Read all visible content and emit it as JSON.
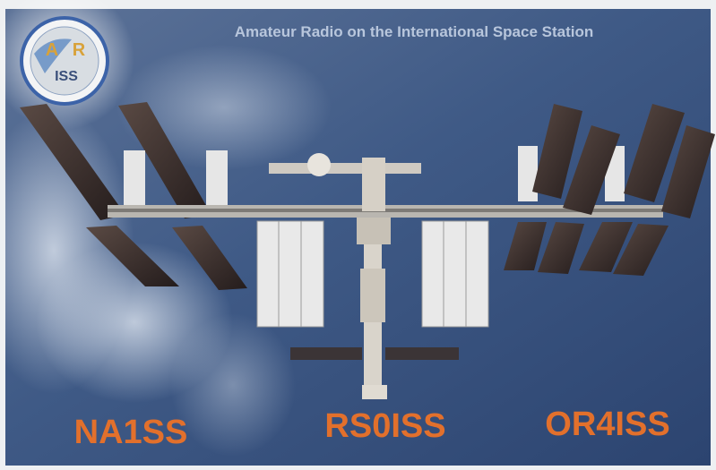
{
  "header": {
    "title": "Amateur Radio on the International Space Station"
  },
  "logo": {
    "letter_a": "A",
    "letter_r": "R",
    "word": "ISS"
  },
  "callsigns": [
    "NA1SS",
    "RS0ISS",
    "OR4ISS"
  ]
}
